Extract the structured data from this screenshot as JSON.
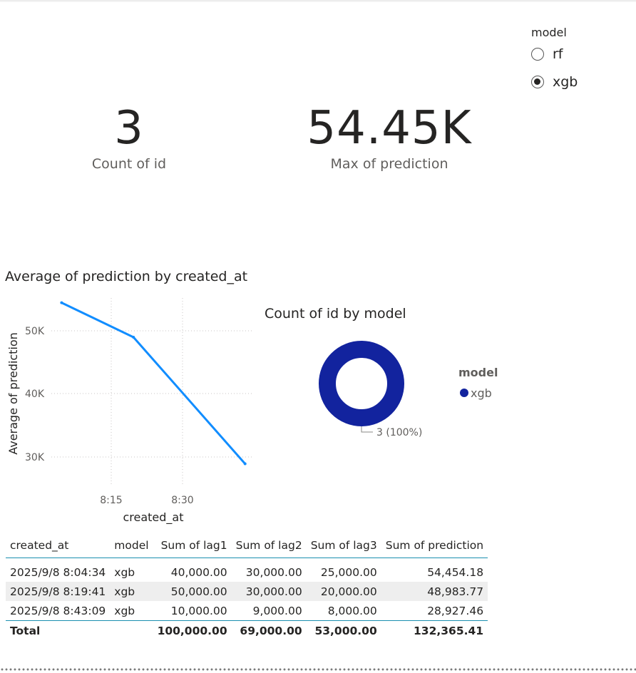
{
  "slicer": {
    "title": "model",
    "options": [
      {
        "label": "rf",
        "selected": false
      },
      {
        "label": "xgb",
        "selected": true
      }
    ]
  },
  "cards": [
    {
      "value": "3",
      "label": "Count of id"
    },
    {
      "value": "54.45K",
      "label": "Max of prediction"
    }
  ],
  "line_chart": {
    "title": "Average of prediction by created_at",
    "xlabel": "created_at",
    "ylabel": "Average of prediction",
    "x_ticks": [
      "8:15",
      "8:30"
    ],
    "y_ticks": [
      "50K",
      "40K",
      "30K"
    ]
  },
  "donut_chart": {
    "title": "Count of id by model",
    "legend_title": "model",
    "legend_items": [
      "xgb"
    ],
    "data_label": "3 (100%)"
  },
  "colors": {
    "line": "#118dff",
    "donut": "#12239e",
    "table_rule": "#1a8fb0"
  },
  "chart_data": [
    {
      "type": "line",
      "title": "Average of prediction by created_at",
      "xlabel": "created_at",
      "ylabel": "Average of prediction",
      "x": [
        "2025/9/8 8:04:34",
        "2025/9/8 8:19:41",
        "2025/9/8 8:43:09"
      ],
      "series": [
        {
          "values": [
            54454.18,
            48983.77,
            28927.46
          ]
        }
      ],
      "ylim": [
        25000,
        56000
      ],
      "grid": true
    },
    {
      "type": "pie",
      "title": "Count of id by model",
      "categories": [
        "xgb"
      ],
      "values": [
        3
      ],
      "legend": "right"
    }
  ],
  "table": {
    "columns": [
      "created_at",
      "model",
      "Sum of lag1",
      "Sum of lag2",
      "Sum of lag3",
      "Sum of prediction"
    ],
    "rows": [
      [
        "2025/9/8 8:04:34",
        "xgb",
        "40,000.00",
        "30,000.00",
        "25,000.00",
        "54,454.18"
      ],
      [
        "2025/9/8 8:19:41",
        "xgb",
        "50,000.00",
        "30,000.00",
        "20,000.00",
        "48,983.77"
      ],
      [
        "2025/9/8 8:43:09",
        "xgb",
        "10,000.00",
        "9,000.00",
        "8,000.00",
        "28,927.46"
      ]
    ],
    "total": [
      "Total",
      "",
      "100,000.00",
      "69,000.00",
      "53,000.00",
      "132,365.41"
    ]
  }
}
